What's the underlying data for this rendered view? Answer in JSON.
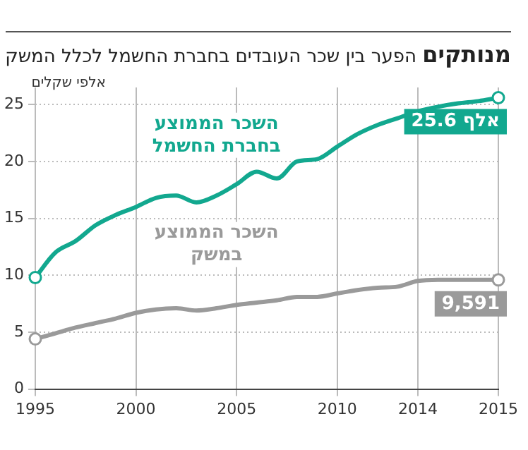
{
  "chart_data": {
    "type": "line",
    "title": "מנותקים",
    "subtitle": "הפער בין שכר העובדים בחברת החשמל לכלל המשק",
    "ylabel": "אלפי שקלים",
    "categories": [
      "1995",
      null,
      null,
      null,
      null,
      "2000",
      null,
      null,
      null,
      null,
      "2005",
      null,
      null,
      null,
      null,
      "2010",
      null,
      null,
      null,
      "2014",
      null,
      null,
      null,
      "2015"
    ],
    "series": [
      {
        "name": "השכר הממוצע בחברת החשמל",
        "color": "#12a88f",
        "values": [
          9.8,
          12.0,
          13.0,
          14.4,
          15.3,
          16.0,
          16.8,
          17.0,
          16.4,
          17.0,
          18.0,
          19.1,
          18.5,
          20.0,
          20.2,
          21.3,
          22.4,
          23.2,
          23.8,
          24.4,
          24.8,
          25.1,
          25.3,
          25.6
        ]
      },
      {
        "name": "השכר הממוצע במשק",
        "color": "#9a9a9a",
        "values": [
          4.4,
          4.9,
          5.4,
          5.8,
          6.2,
          6.7,
          7.0,
          7.1,
          6.9,
          7.1,
          7.4,
          7.6,
          7.8,
          8.1,
          8.1,
          8.4,
          8.7,
          8.9,
          9.0,
          9.5,
          9.6,
          9.6,
          9.6,
          9.591
        ]
      }
    ],
    "ylim": [
      0,
      26.5
    ],
    "yticks": [
      0,
      5,
      10,
      15,
      20,
      25
    ],
    "grid": true,
    "line_style": "solid",
    "legend": false,
    "annotations": [
      {
        "text": "25.6 אלף",
        "x": "2015",
        "y": 25.6
      },
      {
        "text": "9,591",
        "x": "2015",
        "y": 9.591
      }
    ]
  }
}
